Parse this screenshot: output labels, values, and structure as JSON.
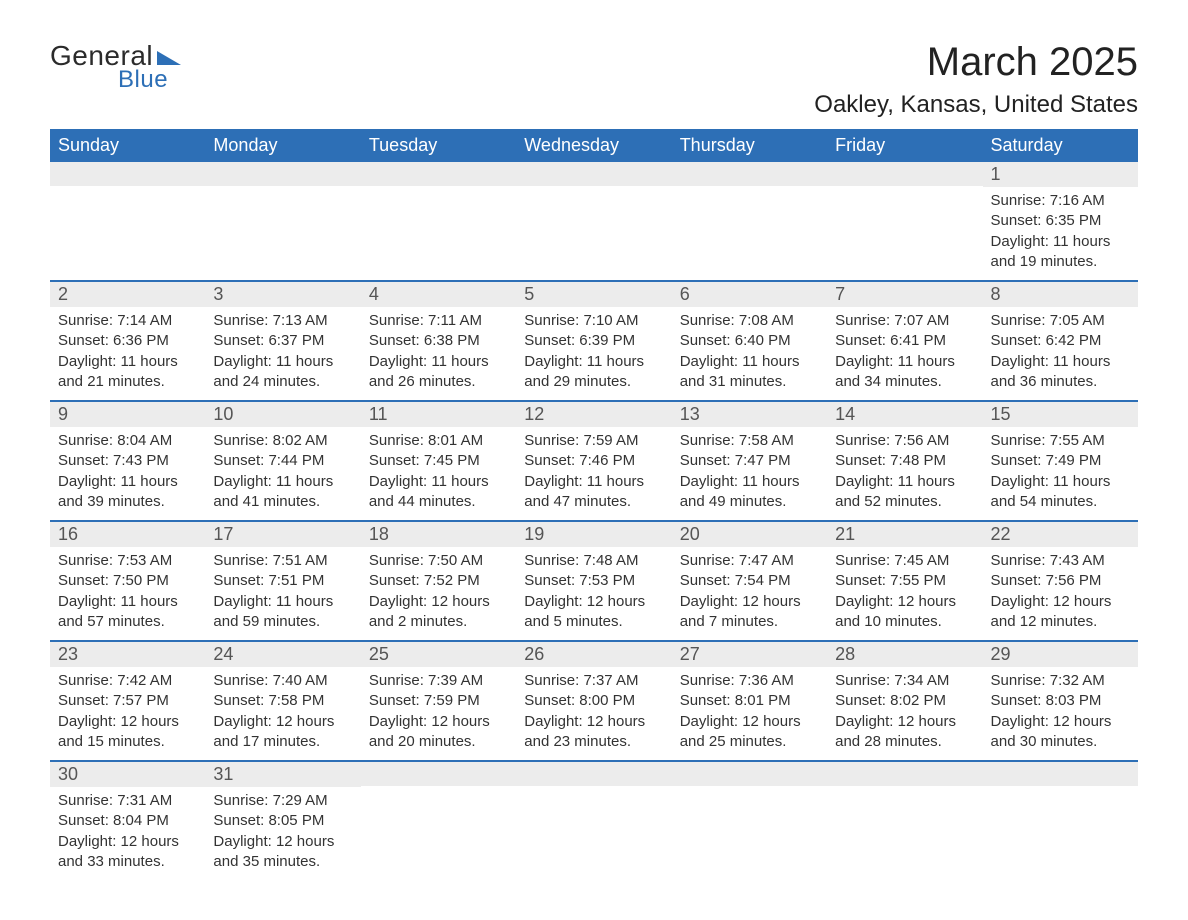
{
  "brand": {
    "word1": "General",
    "word2": "Blue"
  },
  "title": "March 2025",
  "location": "Oakley, Kansas, United States",
  "colors": {
    "header_bg": "#2d6fb6",
    "header_text": "#ffffff",
    "daynum_bg": "#ececec",
    "daynum_text": "#555555",
    "body_text": "#333333",
    "row_divider": "#2d6fb6",
    "page_bg": "#ffffff",
    "brand_accent": "#2d6fb6"
  },
  "typography": {
    "title_fontsize": 40,
    "location_fontsize": 24,
    "header_fontsize": 18,
    "daynum_fontsize": 18,
    "body_fontsize": 15
  },
  "layout": {
    "columns": 7,
    "rows": 6,
    "first_day_column_index": 6
  },
  "weekdays": [
    "Sunday",
    "Monday",
    "Tuesday",
    "Wednesday",
    "Thursday",
    "Friday",
    "Saturday"
  ],
  "labels": {
    "sunrise": "Sunrise:",
    "sunset": "Sunset:",
    "daylight": "Daylight:"
  },
  "days": [
    {
      "n": 1,
      "sunrise": "7:16 AM",
      "sunset": "6:35 PM",
      "daylight": "11 hours and 19 minutes."
    },
    {
      "n": 2,
      "sunrise": "7:14 AM",
      "sunset": "6:36 PM",
      "daylight": "11 hours and 21 minutes."
    },
    {
      "n": 3,
      "sunrise": "7:13 AM",
      "sunset": "6:37 PM",
      "daylight": "11 hours and 24 minutes."
    },
    {
      "n": 4,
      "sunrise": "7:11 AM",
      "sunset": "6:38 PM",
      "daylight": "11 hours and 26 minutes."
    },
    {
      "n": 5,
      "sunrise": "7:10 AM",
      "sunset": "6:39 PM",
      "daylight": "11 hours and 29 minutes."
    },
    {
      "n": 6,
      "sunrise": "7:08 AM",
      "sunset": "6:40 PM",
      "daylight": "11 hours and 31 minutes."
    },
    {
      "n": 7,
      "sunrise": "7:07 AM",
      "sunset": "6:41 PM",
      "daylight": "11 hours and 34 minutes."
    },
    {
      "n": 8,
      "sunrise": "7:05 AM",
      "sunset": "6:42 PM",
      "daylight": "11 hours and 36 minutes."
    },
    {
      "n": 9,
      "sunrise": "8:04 AM",
      "sunset": "7:43 PM",
      "daylight": "11 hours and 39 minutes."
    },
    {
      "n": 10,
      "sunrise": "8:02 AM",
      "sunset": "7:44 PM",
      "daylight": "11 hours and 41 minutes."
    },
    {
      "n": 11,
      "sunrise": "8:01 AM",
      "sunset": "7:45 PM",
      "daylight": "11 hours and 44 minutes."
    },
    {
      "n": 12,
      "sunrise": "7:59 AM",
      "sunset": "7:46 PM",
      "daylight": "11 hours and 47 minutes."
    },
    {
      "n": 13,
      "sunrise": "7:58 AM",
      "sunset": "7:47 PM",
      "daylight": "11 hours and 49 minutes."
    },
    {
      "n": 14,
      "sunrise": "7:56 AM",
      "sunset": "7:48 PM",
      "daylight": "11 hours and 52 minutes."
    },
    {
      "n": 15,
      "sunrise": "7:55 AM",
      "sunset": "7:49 PM",
      "daylight": "11 hours and 54 minutes."
    },
    {
      "n": 16,
      "sunrise": "7:53 AM",
      "sunset": "7:50 PM",
      "daylight": "11 hours and 57 minutes."
    },
    {
      "n": 17,
      "sunrise": "7:51 AM",
      "sunset": "7:51 PM",
      "daylight": "11 hours and 59 minutes."
    },
    {
      "n": 18,
      "sunrise": "7:50 AM",
      "sunset": "7:52 PM",
      "daylight": "12 hours and 2 minutes."
    },
    {
      "n": 19,
      "sunrise": "7:48 AM",
      "sunset": "7:53 PM",
      "daylight": "12 hours and 5 minutes."
    },
    {
      "n": 20,
      "sunrise": "7:47 AM",
      "sunset": "7:54 PM",
      "daylight": "12 hours and 7 minutes."
    },
    {
      "n": 21,
      "sunrise": "7:45 AM",
      "sunset": "7:55 PM",
      "daylight": "12 hours and 10 minutes."
    },
    {
      "n": 22,
      "sunrise": "7:43 AM",
      "sunset": "7:56 PM",
      "daylight": "12 hours and 12 minutes."
    },
    {
      "n": 23,
      "sunrise": "7:42 AM",
      "sunset": "7:57 PM",
      "daylight": "12 hours and 15 minutes."
    },
    {
      "n": 24,
      "sunrise": "7:40 AM",
      "sunset": "7:58 PM",
      "daylight": "12 hours and 17 minutes."
    },
    {
      "n": 25,
      "sunrise": "7:39 AM",
      "sunset": "7:59 PM",
      "daylight": "12 hours and 20 minutes."
    },
    {
      "n": 26,
      "sunrise": "7:37 AM",
      "sunset": "8:00 PM",
      "daylight": "12 hours and 23 minutes."
    },
    {
      "n": 27,
      "sunrise": "7:36 AM",
      "sunset": "8:01 PM",
      "daylight": "12 hours and 25 minutes."
    },
    {
      "n": 28,
      "sunrise": "7:34 AM",
      "sunset": "8:02 PM",
      "daylight": "12 hours and 28 minutes."
    },
    {
      "n": 29,
      "sunrise": "7:32 AM",
      "sunset": "8:03 PM",
      "daylight": "12 hours and 30 minutes."
    },
    {
      "n": 30,
      "sunrise": "7:31 AM",
      "sunset": "8:04 PM",
      "daylight": "12 hours and 33 minutes."
    },
    {
      "n": 31,
      "sunrise": "7:29 AM",
      "sunset": "8:05 PM",
      "daylight": "12 hours and 35 minutes."
    }
  ]
}
